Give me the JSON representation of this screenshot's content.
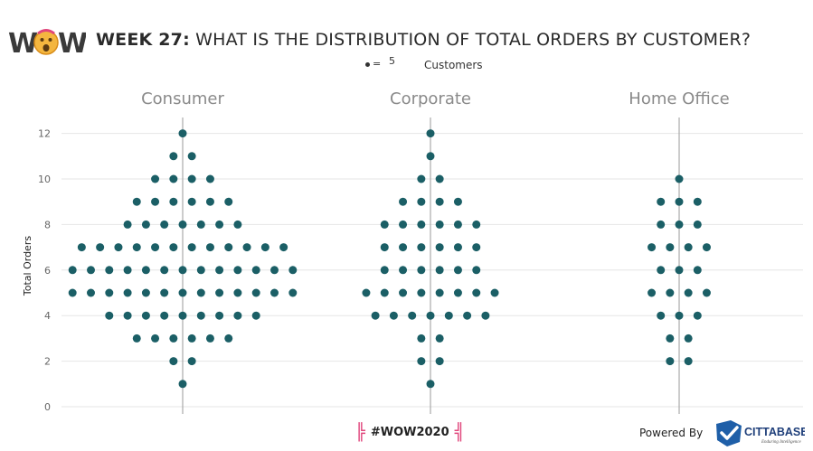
{
  "header": {
    "logo_text": "WOW",
    "title_bold": "WEEK 27:",
    "title_rest": "WHAT IS THE DISTRIBUTION OF TOTAL ORDERS BY CUSTOMER?"
  },
  "legend": {
    "equals": "=",
    "unit_count": "5",
    "unit_label": "Customers"
  },
  "footer": {
    "tag": "#WOW2020",
    "powered_by": "Powered By",
    "brand": "CITTABASE",
    "brand_tagline": "Enduring Intelligence"
  },
  "colors": {
    "dot": "#1b5f66",
    "axis_line": "#9a9a9a",
    "grid": "#e6e6e6",
    "accent": "#e0457b",
    "brand_blue": "#1f5fa8"
  },
  "chart_data": {
    "type": "scatter",
    "ylabel": "Total Orders",
    "ylim": [
      0,
      13
    ],
    "yticks": [
      0,
      2,
      4,
      6,
      8,
      10,
      12
    ],
    "grid": true,
    "dot_unit_customers": 5,
    "panels": [
      {
        "name": "Consumer",
        "dots_per_order": {
          "1": 1,
          "2": 2,
          "3": 6,
          "4": 9,
          "5": 13,
          "6": 13,
          "7": 12,
          "8": 7,
          "9": 6,
          "10": 4,
          "11": 2,
          "12": 1
        }
      },
      {
        "name": "Corporate",
        "dots_per_order": {
          "1": 1,
          "2": 2,
          "3": 2,
          "4": 7,
          "5": 8,
          "6": 6,
          "7": 6,
          "8": 6,
          "9": 4,
          "10": 2,
          "11": 1,
          "12": 1
        }
      },
      {
        "name": "Home Office",
        "dots_per_order": {
          "2": 2,
          "3": 2,
          "4": 3,
          "5": 4,
          "6": 3,
          "7": 4,
          "8": 3,
          "9": 3,
          "10": 1
        }
      }
    ]
  }
}
